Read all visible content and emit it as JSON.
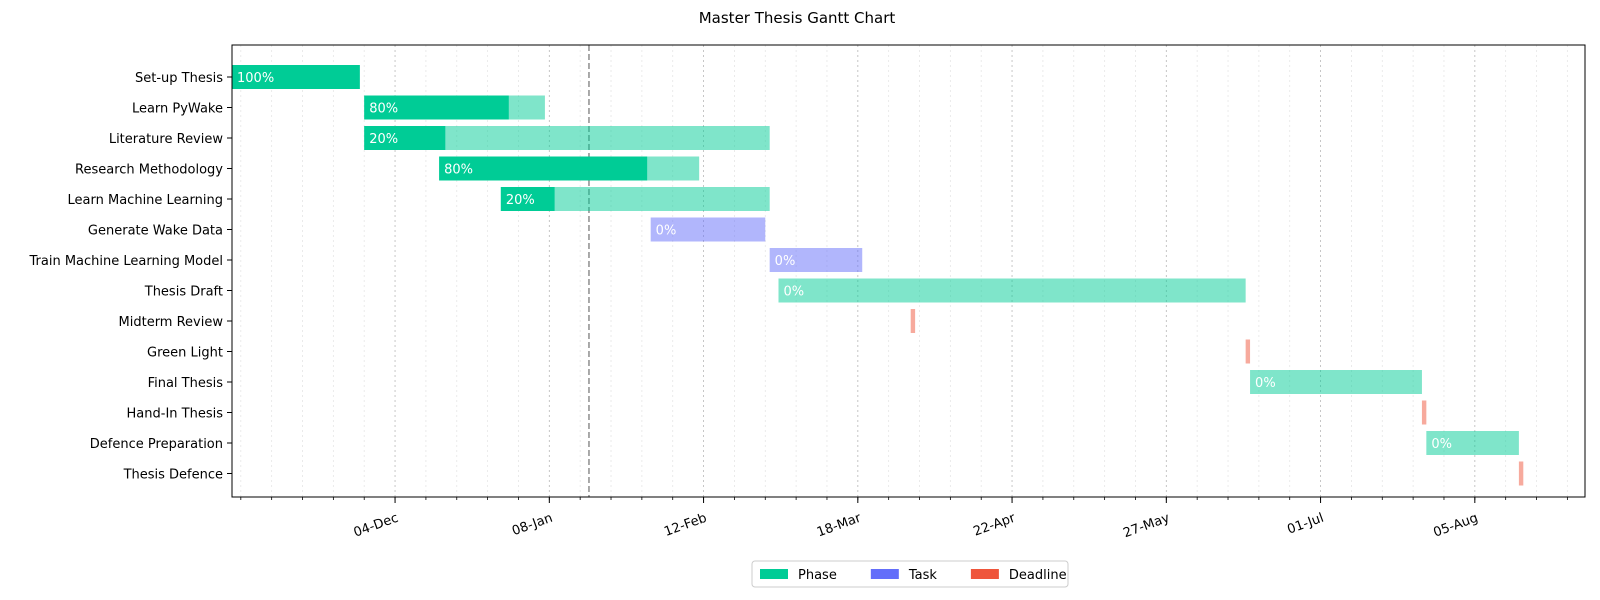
{
  "chart_data": {
    "type": "gantt",
    "title": "Master Thesis Gantt Chart",
    "today_marker": "2024-01-17",
    "x_range": [
      "2023-10-28",
      "2024-08-30"
    ],
    "x_ticks": [
      {
        "date": "2023-12-04",
        "label": "04-Dec"
      },
      {
        "date": "2024-01-08",
        "label": "08-Jan"
      },
      {
        "date": "2024-02-12",
        "label": "12-Feb"
      },
      {
        "date": "2024-03-18",
        "label": "18-Mar"
      },
      {
        "date": "2024-04-22",
        "label": "22-Apr"
      },
      {
        "date": "2024-05-27",
        "label": "27-May"
      },
      {
        "date": "2024-07-01",
        "label": "01-Jul"
      },
      {
        "date": "2024-08-05",
        "label": "05-Aug"
      }
    ],
    "minor_tick_step_days": 7,
    "grid": true,
    "legend_position": "bottom-center",
    "colors": {
      "Phase": "#00cc96",
      "Task": "#636efa",
      "Deadline": "#ef553b"
    },
    "legend": [
      {
        "label": "Phase",
        "category": "Phase"
      },
      {
        "label": "Task",
        "category": "Task"
      },
      {
        "label": "Deadline",
        "category": "Deadline"
      }
    ],
    "tasks": [
      {
        "name": "Set-up Thesis",
        "category": "Phase",
        "start": "2023-10-28",
        "end": "2023-11-26",
        "completion": 100,
        "label": "100%"
      },
      {
        "name": "Learn PyWake",
        "category": "Phase",
        "start": "2023-11-27",
        "end": "2024-01-07",
        "completion": 80,
        "label": "80%"
      },
      {
        "name": "Literature Review",
        "category": "Phase",
        "start": "2023-11-27",
        "end": "2024-02-27",
        "completion": 20,
        "label": "20%"
      },
      {
        "name": "Research Methodology",
        "category": "Phase",
        "start": "2023-12-14",
        "end": "2024-02-11",
        "completion": 80,
        "label": "80%"
      },
      {
        "name": "Learn Machine Learning",
        "category": "Phase",
        "start": "2023-12-28",
        "end": "2024-02-27",
        "completion": 20,
        "label": "20%"
      },
      {
        "name": "Generate Wake Data ",
        "category": "Task",
        "start": "2024-01-31",
        "end": "2024-02-26",
        "completion": 0,
        "label": "0%"
      },
      {
        "name": "Train Machine Learning Model",
        "category": "Task",
        "start": "2024-02-27",
        "end": "2024-03-19",
        "completion": 0,
        "label": "0%"
      },
      {
        "name": "Thesis Draft",
        "category": "Phase",
        "start": "2024-02-29",
        "end": "2024-06-14",
        "completion": 0,
        "label": "0%"
      },
      {
        "name": "Midterm Review",
        "category": "Deadline",
        "start": "2024-03-30",
        "end": "2024-03-31",
        "completion": 0,
        "label": ""
      },
      {
        "name": "Green Light",
        "category": "Deadline",
        "start": "2024-06-14",
        "end": "2024-06-15",
        "completion": 0,
        "label": ""
      },
      {
        "name": "Final Thesis",
        "category": "Phase",
        "start": "2024-06-15",
        "end": "2024-07-24",
        "completion": 0,
        "label": "0%"
      },
      {
        "name": "Hand-In Thesis",
        "category": "Deadline",
        "start": "2024-07-24",
        "end": "2024-07-25",
        "completion": 0,
        "label": ""
      },
      {
        "name": "Defence Preparation",
        "category": "Phase",
        "start": "2024-07-25",
        "end": "2024-08-15",
        "completion": 0,
        "label": "0%"
      },
      {
        "name": "Thesis Defence",
        "category": "Deadline",
        "start": "2024-08-15",
        "end": "2024-08-16",
        "completion": 0,
        "label": ""
      }
    ]
  }
}
